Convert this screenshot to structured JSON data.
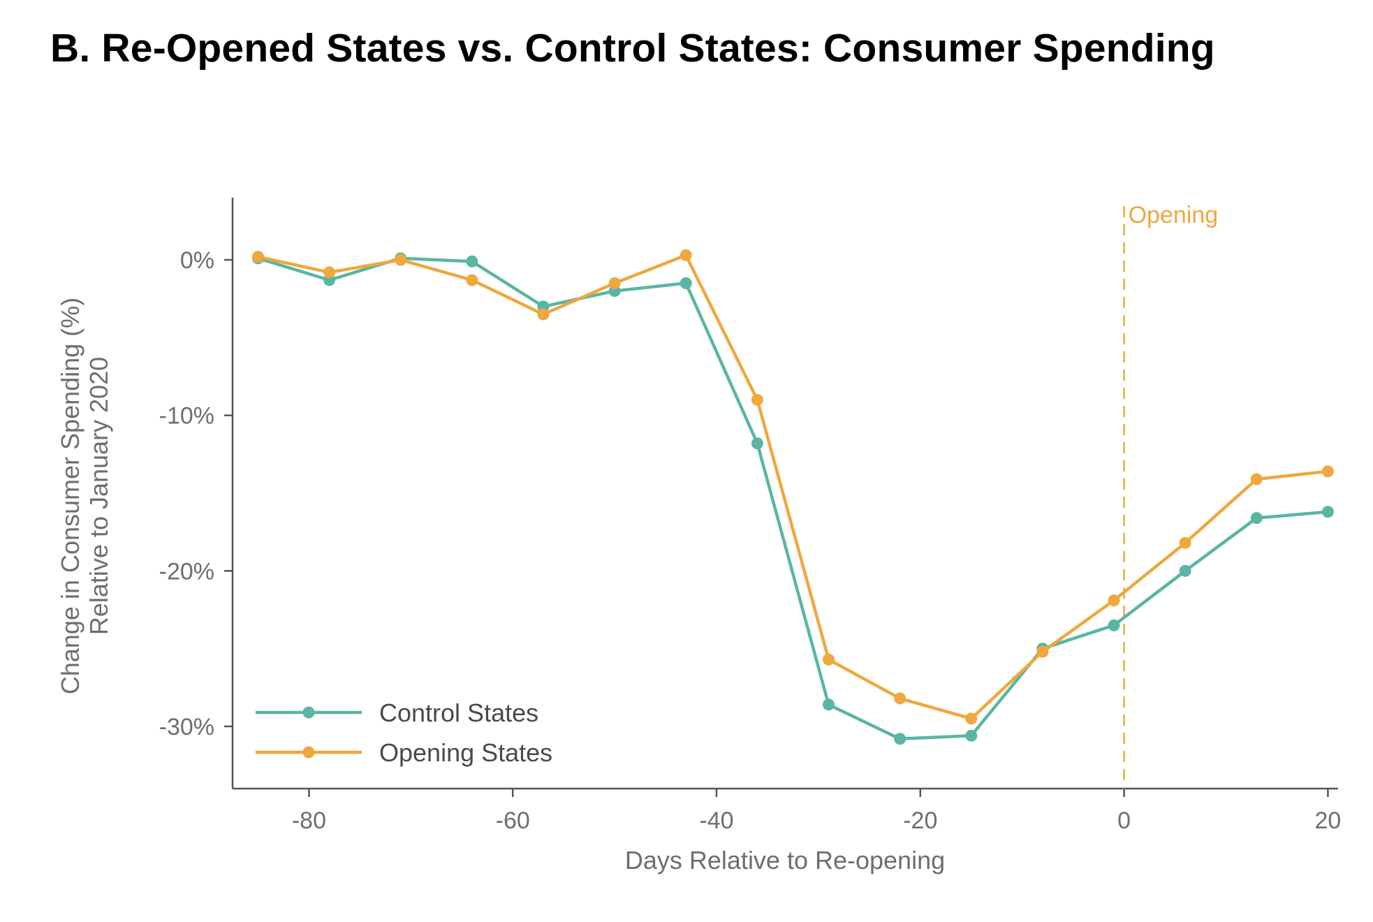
{
  "chart_data": {
    "type": "line",
    "title": "B. Re-Opened States vs. Control States: Consumer Spending",
    "xlabel": "Days Relative to Re-opening",
    "ylabel_line1": "Change in Consumer Spending (%)",
    "ylabel_line2": "Relative to January 2020",
    "xlim": [
      -87.5,
      21
    ],
    "ylim": [
      -34,
      4
    ],
    "xticks": [
      -80,
      -60,
      -40,
      -20,
      0,
      20
    ],
    "xtick_labels": [
      "-80",
      "-60",
      "-40",
      "-20",
      "0",
      "20"
    ],
    "yticks": [
      0,
      -10,
      -20,
      -30
    ],
    "ytick_labels": [
      "0%",
      "-10%",
      "-20%",
      "-30%"
    ],
    "grid": false,
    "legend_position": "bottom-left",
    "annotation": {
      "label": "Opening",
      "x": 0,
      "color": "#eea83e"
    },
    "series": [
      {
        "name": "Control States",
        "color": "#5ab5a4",
        "x": [
          -85,
          -78,
          -71,
          -64,
          -57,
          -50,
          -43,
          -36,
          -29,
          -22,
          -15,
          -8,
          -1,
          6,
          13,
          20
        ],
        "values": [
          0.1,
          -1.3,
          0.1,
          -0.1,
          -3.0,
          -2.0,
          -1.5,
          -11.8,
          -28.6,
          -30.8,
          -30.6,
          -25.0,
          -23.5,
          -20.0,
          -16.6,
          -16.2
        ]
      },
      {
        "name": "Opening States",
        "color": "#eea83e",
        "x": [
          -85,
          -78,
          -71,
          -64,
          -57,
          -50,
          -43,
          -36,
          -29,
          -22,
          -15,
          -8,
          -1,
          6,
          13,
          20
        ],
        "values": [
          0.2,
          -0.8,
          0.0,
          -1.3,
          -3.5,
          -1.5,
          0.3,
          -9.0,
          -25.7,
          -28.2,
          -29.5,
          -25.2,
          -21.9,
          -18.2,
          -14.1,
          -13.6
        ]
      }
    ]
  }
}
